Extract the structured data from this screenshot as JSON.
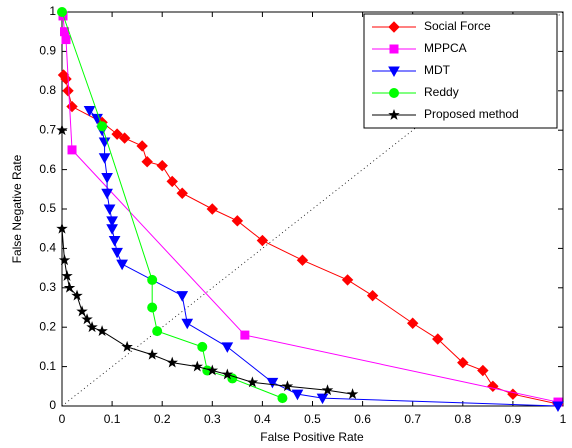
{
  "chart_data": {
    "type": "line",
    "xlabel": "False Positive Rate",
    "ylabel": "False Negative Rate",
    "xlim": [
      0,
      1
    ],
    "ylim": [
      0,
      1
    ],
    "xticks": [
      0,
      0.1,
      0.2,
      0.3,
      0.4,
      0.5,
      0.6,
      0.7,
      0.8,
      0.9,
      1
    ],
    "yticks": [
      0,
      0.1,
      0.2,
      0.3,
      0.4,
      0.5,
      0.6,
      0.7,
      0.8,
      0.9,
      1
    ],
    "grid": false,
    "legend": "upper right",
    "series": [
      {
        "name": "Social Force",
        "color": "#ff0000",
        "marker": "diamond",
        "x": [
          0.003,
          0.008,
          0.012,
          0.02,
          0.08,
          0.11,
          0.125,
          0.16,
          0.17,
          0.2,
          0.22,
          0.24,
          0.3,
          0.35,
          0.4,
          0.48,
          0.57,
          0.62,
          0.7,
          0.75,
          0.8,
          0.84,
          0.86,
          0.9,
          0.99
        ],
        "values": [
          0.84,
          0.83,
          0.8,
          0.76,
          0.72,
          0.69,
          0.68,
          0.66,
          0.62,
          0.61,
          0.57,
          0.54,
          0.5,
          0.47,
          0.42,
          0.37,
          0.32,
          0.28,
          0.21,
          0.17,
          0.11,
          0.09,
          0.05,
          0.03,
          0.005
        ]
      },
      {
        "name": "MPPCA",
        "color": "#ff00ff",
        "marker": "square",
        "x": [
          0.002,
          0.005,
          0.008,
          0.02,
          0.365,
          0.99
        ],
        "values": [
          0.99,
          0.95,
          0.93,
          0.65,
          0.18,
          0.01
        ]
      },
      {
        "name": "MDT",
        "color": "#0000ff",
        "marker": "triangle-down",
        "x": [
          0.055,
          0.07,
          0.08,
          0.085,
          0.085,
          0.09,
          0.09,
          0.095,
          0.1,
          0.1,
          0.105,
          0.11,
          0.12,
          0.24,
          0.25,
          0.33,
          0.42,
          0.47,
          0.52,
          0.99
        ],
        "values": [
          0.75,
          0.73,
          0.7,
          0.67,
          0.63,
          0.58,
          0.54,
          0.5,
          0.47,
          0.45,
          0.42,
          0.39,
          0.36,
          0.28,
          0.21,
          0.15,
          0.06,
          0.03,
          0.02,
          0
        ]
      },
      {
        "name": "Reddy",
        "color": "#00ff00",
        "marker": "circle",
        "x": [
          0,
          0.08,
          0.18,
          0.18,
          0.19,
          0.28,
          0.29,
          0.34,
          0.44
        ],
        "values": [
          1,
          0.71,
          0.32,
          0.25,
          0.19,
          0.15,
          0.09,
          0.07,
          0.02
        ]
      },
      {
        "name": "Proposed method",
        "color": "#000000",
        "marker": "star",
        "x": [
          0,
          0,
          0.005,
          0.01,
          0.015,
          0.03,
          0.04,
          0.05,
          0.06,
          0.08,
          0.13,
          0.18,
          0.22,
          0.27,
          0.3,
          0.33,
          0.38,
          0.45,
          0.53,
          0.58
        ],
        "values": [
          0.7,
          0.45,
          0.37,
          0.33,
          0.3,
          0.28,
          0.24,
          0.22,
          0.2,
          0.19,
          0.15,
          0.13,
          0.11,
          0.1,
          0.09,
          0.08,
          0.06,
          0.05,
          0.04,
          0.03
        ]
      }
    ]
  }
}
